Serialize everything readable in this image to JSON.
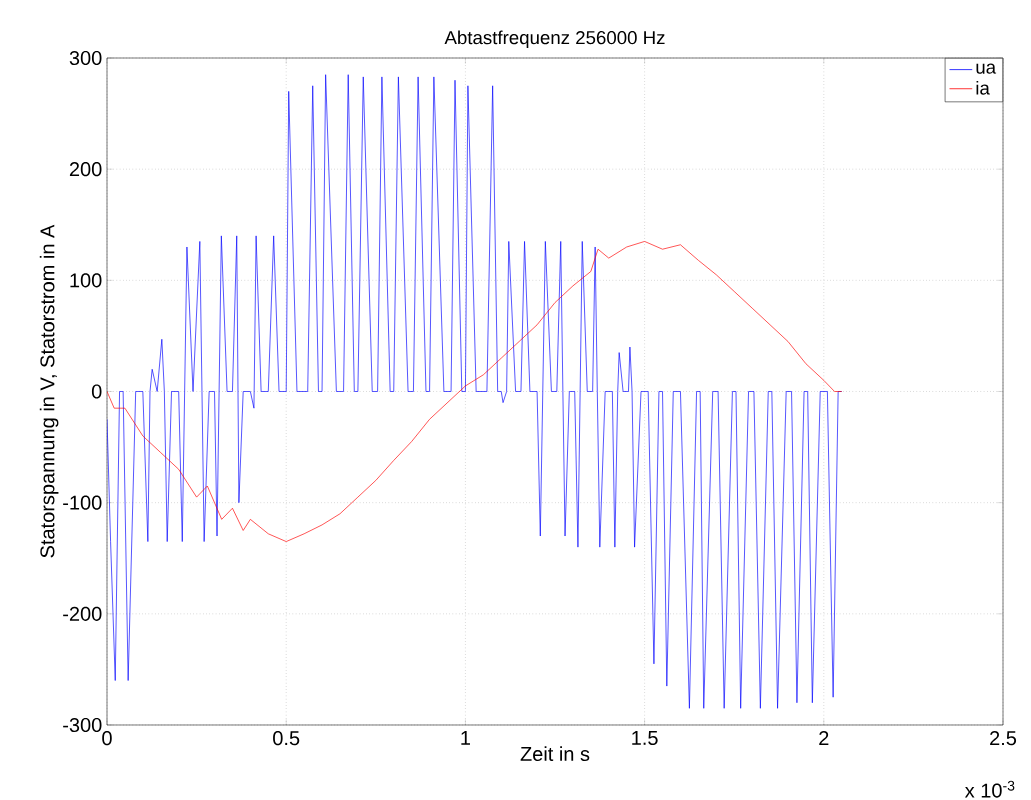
{
  "chart_data": {
    "type": "line",
    "title": "Abtastfrequenz 256000 Hz",
    "xlabel": "Zeit in s",
    "ylabel": "Statorspannung in V, Statorstrom in A",
    "annotations": [
      "x 10$^{-3}$"
    ],
    "xlim": [
      0,
      2.5
    ],
    "ylim": [
      -300,
      300
    ],
    "xticks": [
      0,
      0.5,
      1,
      1.5,
      2,
      2.5
    ],
    "yticks": [
      -300,
      -200,
      -100,
      0,
      100,
      200,
      300
    ],
    "grid": true,
    "legend": "top right",
    "series": [
      {
        "name": "ua",
        "color": "#0000ff",
        "x": [
          0,
          0.01,
          0.023,
          0.035,
          0.045,
          0.059,
          0.08,
          0.1,
          0.114,
          0.12,
          0.126,
          0.14,
          0.153,
          0.16,
          0.168,
          0.18,
          0.2,
          0.21,
          0.223,
          0.24,
          0.259,
          0.265,
          0.271,
          0.285,
          0.3,
          0.307,
          0.319,
          0.335,
          0.35,
          0.362,
          0.368,
          0.38,
          0.4,
          0.41,
          0.416,
          0.43,
          0.45,
          0.465,
          0.48,
          0.5,
          0.507,
          0.53,
          0.56,
          0.574,
          0.59,
          0.6,
          0.61,
          0.64,
          0.66,
          0.673,
          0.69,
          0.7,
          0.715,
          0.74,
          0.755,
          0.767,
          0.79,
          0.8,
          0.813,
          0.84,
          0.855,
          0.868,
          0.89,
          0.9,
          0.912,
          0.94,
          0.96,
          0.971,
          0.99,
          1.0,
          1.007,
          1.03,
          1.06,
          1.076,
          1.09,
          1.1,
          1.105,
          1.115,
          1.121,
          1.14,
          1.155,
          1.165,
          1.18,
          1.2,
          1.209,
          1.223,
          1.24,
          1.255,
          1.266,
          1.272,
          1.278,
          1.29,
          1.305,
          1.314,
          1.326,
          1.34,
          1.355,
          1.362,
          1.368,
          1.375,
          1.39,
          1.41,
          1.417,
          1.425,
          1.429,
          1.44,
          1.455,
          1.459,
          1.465,
          1.472,
          1.49,
          1.51,
          1.526,
          1.54,
          1.55,
          1.562,
          1.58,
          1.6,
          1.625,
          1.645,
          1.655,
          1.665,
          1.69,
          1.705,
          1.722,
          1.745,
          1.755,
          1.768,
          1.79,
          1.805,
          1.823,
          1.845,
          1.855,
          1.871,
          1.895,
          1.91,
          1.925,
          1.945,
          1.955,
          1.968,
          1.99,
          2.01,
          2.026,
          2.04,
          2.05
        ],
        "values": [
          -25,
          -135,
          -260,
          0,
          0,
          -260,
          0,
          0,
          -135,
          0,
          20,
          0,
          47,
          0,
          -135,
          0,
          0,
          -135,
          130,
          0,
          135,
          0,
          -135,
          0,
          0,
          -130,
          140,
          0,
          0,
          140,
          -100,
          0,
          0,
          -15,
          140,
          0,
          0,
          140,
          0,
          0,
          270,
          0,
          0,
          275,
          0,
          0,
          285,
          0,
          0,
          285,
          0,
          0,
          283,
          0,
          0,
          283,
          0,
          0,
          283,
          0,
          0,
          283,
          0,
          0,
          283,
          0,
          0,
          280,
          0,
          0,
          275,
          0,
          0,
          275,
          0,
          0,
          -10,
          0,
          135,
          0,
          0,
          135,
          0,
          0,
          -130,
          135,
          0,
          0,
          135,
          0,
          -130,
          0,
          0,
          -140,
          135,
          0,
          0,
          130,
          0,
          -140,
          0,
          0,
          -140,
          0,
          35,
          0,
          0,
          40,
          0,
          -140,
          0,
          0,
          -245,
          0,
          0,
          -265,
          0,
          0,
          -285,
          0,
          0,
          -285,
          0,
          0,
          -285,
          0,
          0,
          -285,
          0,
          0,
          -285,
          0,
          0,
          -285,
          0,
          0,
          -280,
          0,
          0,
          -280,
          0,
          0,
          -275,
          0,
          0
        ]
      },
      {
        "name": "ia",
        "color": "#ff0000",
        "x": [
          0,
          0.02,
          0.05,
          0.1,
          0.15,
          0.2,
          0.25,
          0.28,
          0.32,
          0.35,
          0.38,
          0.4,
          0.45,
          0.5,
          0.55,
          0.6,
          0.65,
          0.7,
          0.75,
          0.8,
          0.85,
          0.9,
          0.95,
          1.0,
          1.05,
          1.1,
          1.15,
          1.2,
          1.25,
          1.3,
          1.35,
          1.37,
          1.4,
          1.45,
          1.5,
          1.55,
          1.6,
          1.65,
          1.7,
          1.75,
          1.8,
          1.85,
          1.9,
          1.95,
          2.0,
          2.03,
          2.05
        ],
        "values": [
          0,
          -15,
          -15,
          -40,
          -55,
          -70,
          -95,
          -85,
          -115,
          -105,
          -125,
          -115,
          -128,
          -135,
          -128,
          -120,
          -110,
          -95,
          -80,
          -62,
          -45,
          -25,
          -10,
          5,
          15,
          30,
          45,
          60,
          80,
          95,
          108,
          128,
          120,
          130,
          135,
          128,
          132,
          118,
          105,
          90,
          75,
          60,
          45,
          25,
          10,
          0,
          0
        ]
      }
    ]
  }
}
